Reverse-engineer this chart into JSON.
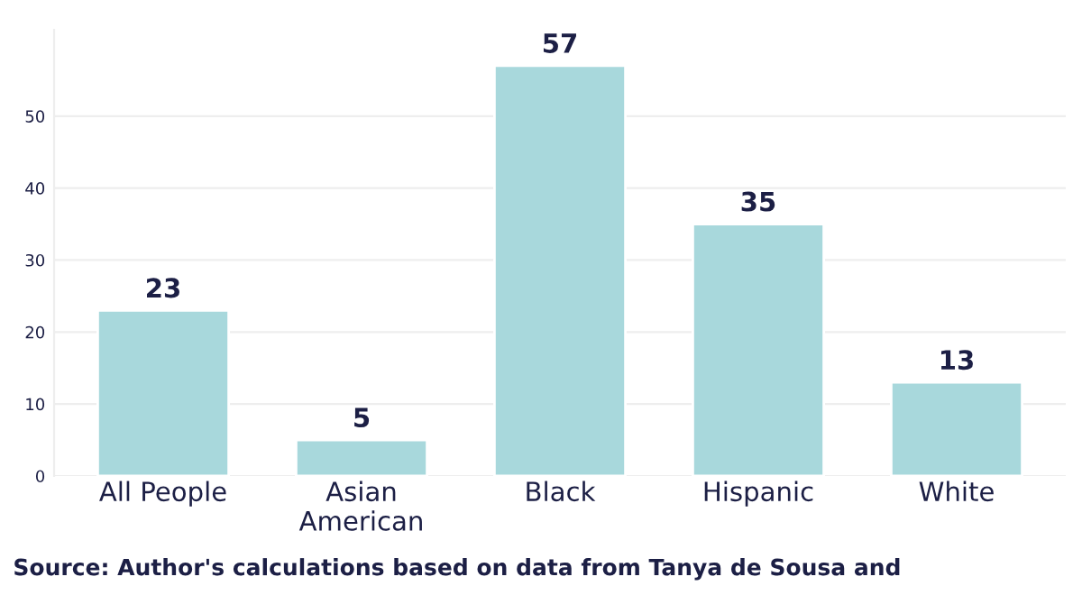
{
  "chart_data": {
    "type": "bar",
    "categories": [
      "All People",
      "Asian\nAmerican",
      "Black",
      "Hispanic",
      "White"
    ],
    "values": [
      23,
      5,
      57,
      35,
      13
    ],
    "color": "#a8d8dc",
    "ylim": [
      0,
      62
    ],
    "yticks": [
      0,
      10,
      20,
      30,
      40,
      50
    ],
    "grid": "y",
    "data_labels": true,
    "annotations": [
      "Source: Author's calculations based on data from Tanya de Sousa and"
    ]
  }
}
